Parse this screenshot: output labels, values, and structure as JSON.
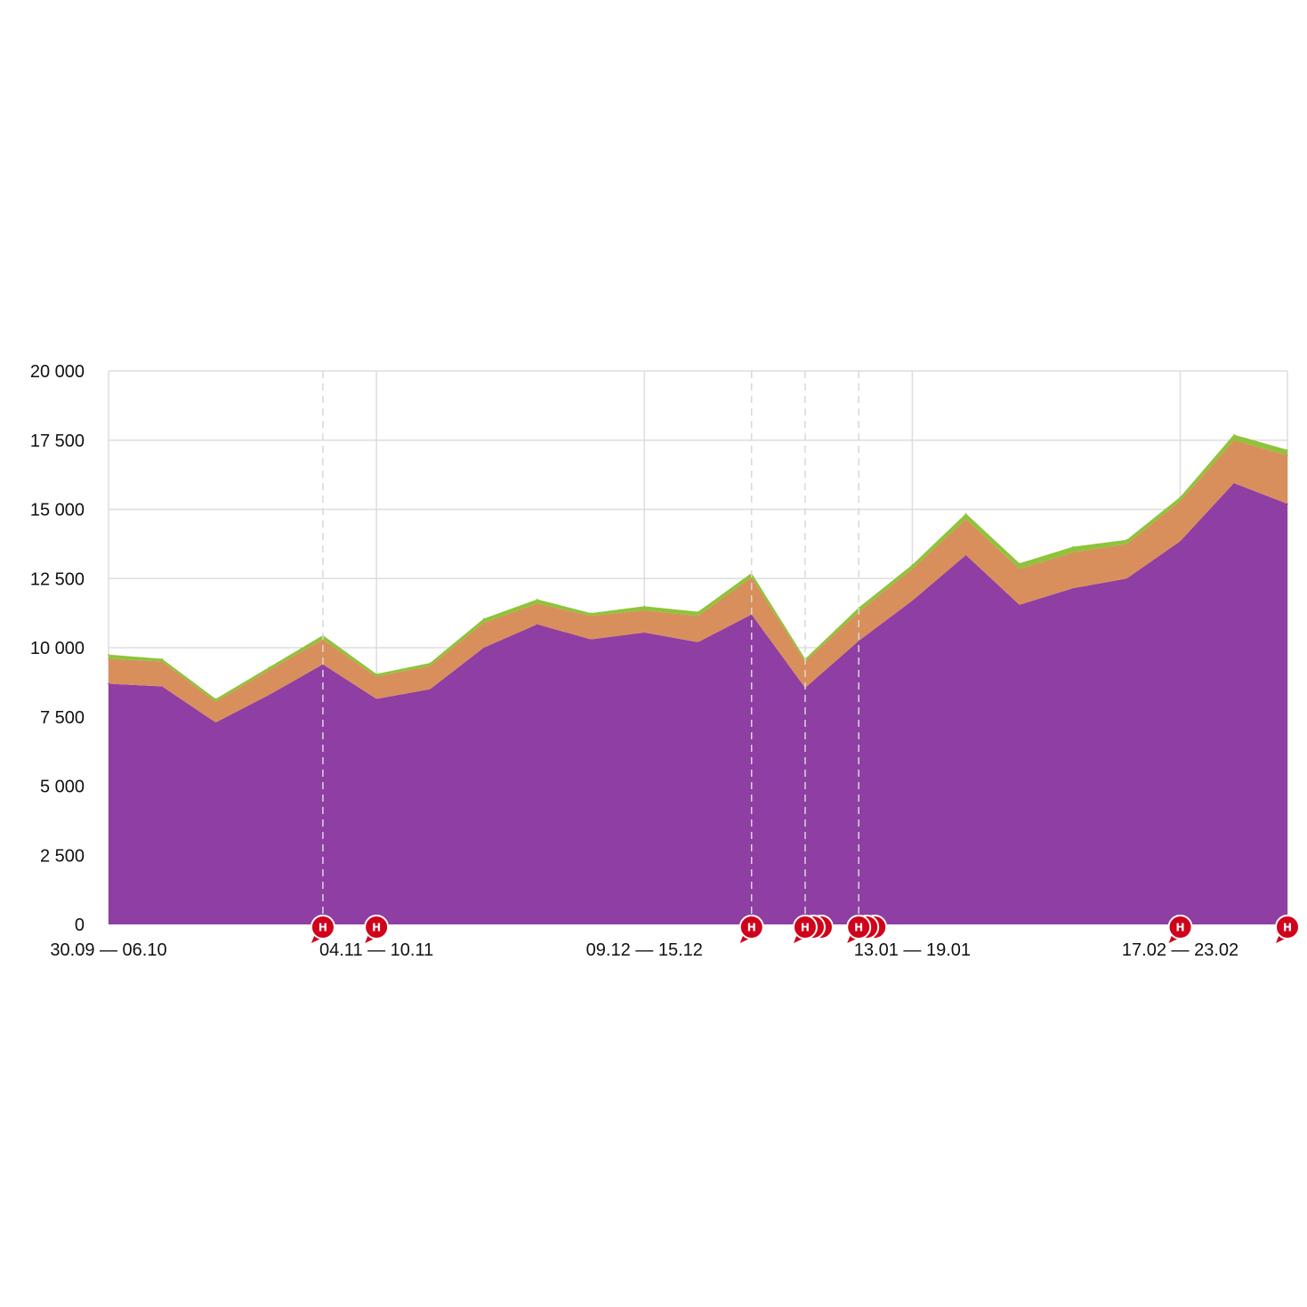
{
  "chart_data": {
    "type": "area",
    "stacked": true,
    "grid": true,
    "ylim": [
      0,
      20000
    ],
    "yticks": [
      {
        "value": 0,
        "label": "0"
      },
      {
        "value": 2500,
        "label": "2 500"
      },
      {
        "value": 5000,
        "label": "5 000"
      },
      {
        "value": 7500,
        "label": "7 500"
      },
      {
        "value": 10000,
        "label": "10 000"
      },
      {
        "value": 12500,
        "label": "12 500"
      },
      {
        "value": 15000,
        "label": "15 000"
      },
      {
        "value": 17500,
        "label": "17 500"
      },
      {
        "value": 20000,
        "label": "20 000"
      }
    ],
    "x_count": 23,
    "xticks": [
      {
        "index": 0,
        "label": "30.09 — 06.10"
      },
      {
        "index": 5,
        "label": "04.11 — 10.11"
      },
      {
        "index": 10,
        "label": "09.12 — 15.12"
      },
      {
        "index": 15,
        "label": "13.01 — 19.01"
      },
      {
        "index": 20,
        "label": "17.02 — 23.02"
      }
    ],
    "series": [
      {
        "color": "#8f3ea3",
        "values": [
          8700,
          8600,
          7300,
          8300,
          9400,
          8150,
          8500,
          10000,
          10850,
          10300,
          10550,
          10200,
          11200,
          8550,
          10250,
          11700,
          13350,
          11550,
          12150,
          12500,
          13850,
          15950,
          15200
        ]
      },
      {
        "color": "#d98f5c",
        "values": [
          900,
          900,
          750,
          900,
          900,
          800,
          850,
          900,
          750,
          850,
          800,
          950,
          1350,
          950,
          1050,
          1150,
          1300,
          1300,
          1300,
          1250,
          1450,
          1550,
          1750
        ]
      },
      {
        "color": "#8fc33a",
        "values": [
          150,
          100,
          100,
          100,
          150,
          100,
          100,
          150,
          150,
          100,
          150,
          150,
          150,
          100,
          150,
          150,
          200,
          200,
          200,
          150,
          150,
          200,
          200
        ]
      }
    ],
    "event_markers": [
      {
        "position": 4,
        "stack": 1,
        "label": "Н"
      },
      {
        "position": 5,
        "stack": 1,
        "label": "Н"
      },
      {
        "position": 12,
        "stack": 1,
        "label": "Н"
      },
      {
        "position": 13,
        "stack": 3,
        "label": "Н"
      },
      {
        "position": 14,
        "stack": 3,
        "label": "Н"
      },
      {
        "position": 20,
        "stack": 1,
        "label": "Н"
      },
      {
        "position": 22,
        "stack": 1,
        "label": "Н"
      }
    ],
    "event_lines": [
      4,
      12,
      13,
      14
    ],
    "marker_color": "#d0021b"
  }
}
